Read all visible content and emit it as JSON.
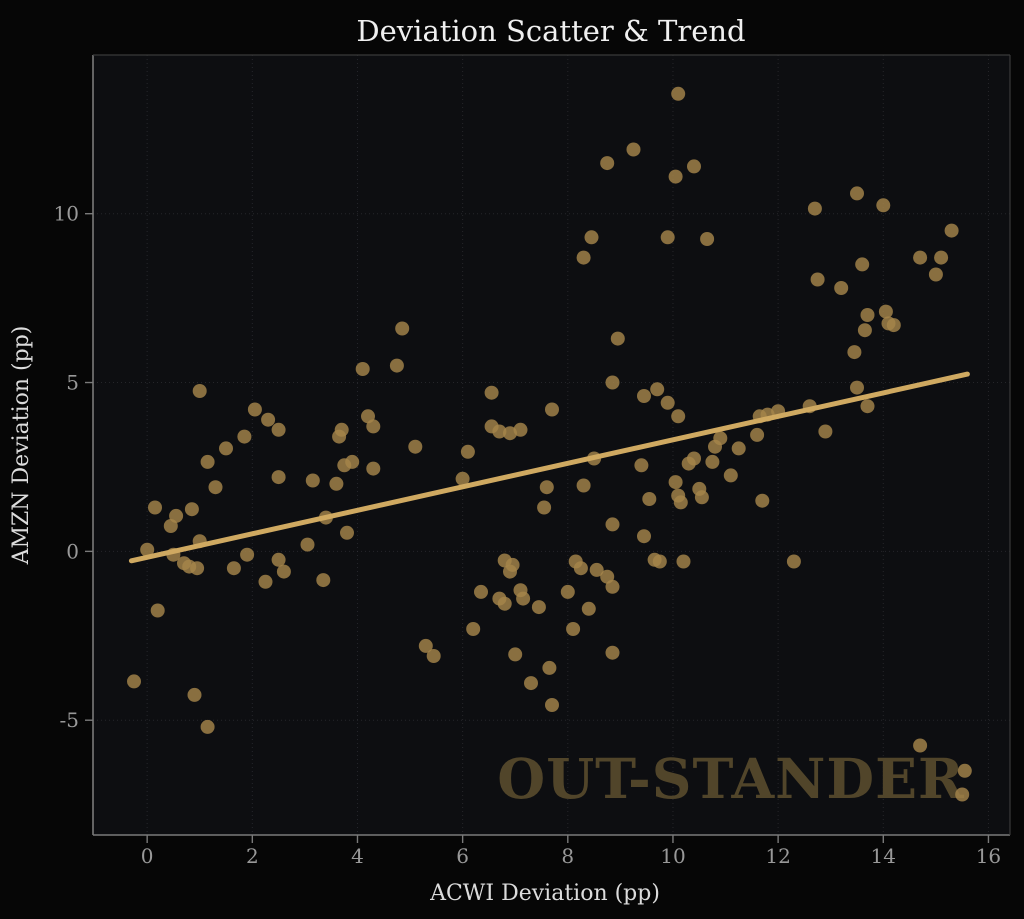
{
  "title": "Deviation Scatter & Trend",
  "watermark": "OUT-STANDER",
  "colors": {
    "background": "#060606",
    "plot_background": "#0d0e11",
    "point": "#a5854a",
    "trend": "#cfa961",
    "title": "#f0f0f0",
    "axis_label": "#dcdcdc",
    "tick_label": "#999999",
    "spine_main": "#7a7a7a",
    "spine_far": "#3a3a3a",
    "grid": "#3a3a40",
    "watermark": "#51452a"
  },
  "chart_data": {
    "type": "scatter",
    "title": "Deviation Scatter & Trend",
    "xlabel": "ACWI Deviation (pp)",
    "ylabel": "AMZN Deviation (pp)",
    "xlim": [
      -1.03,
      16.41
    ],
    "ylim": [
      -8.4,
      14.7
    ],
    "xticks": [
      0,
      2,
      4,
      6,
      8,
      10,
      12,
      14,
      16
    ],
    "yticks": [
      -5,
      0,
      5,
      10
    ],
    "grid": true,
    "grid_style": "dotted",
    "legend_position": "none",
    "watermark": "OUT-STANDER",
    "series": [
      {
        "name": "scatter-points",
        "type": "scatter",
        "color": "#a5854a",
        "marker_radius": 7,
        "opacity": 0.82,
        "points": [
          [
            1.0,
            4.75
          ],
          [
            2.05,
            4.2
          ],
          [
            2.3,
            3.9
          ],
          [
            2.5,
            3.6
          ],
          [
            1.85,
            3.4
          ],
          [
            3.7,
            3.6
          ],
          [
            3.65,
            3.4
          ],
          [
            4.1,
            5.4
          ],
          [
            4.75,
            5.5
          ],
          [
            4.85,
            6.6
          ],
          [
            4.2,
            4.0
          ],
          [
            4.3,
            3.7
          ],
          [
            10.1,
            13.55
          ],
          [
            9.25,
            11.9
          ],
          [
            8.75,
            11.5
          ],
          [
            10.4,
            11.4
          ],
          [
            10.05,
            11.1
          ],
          [
            8.45,
            9.3
          ],
          [
            8.3,
            8.7
          ],
          [
            9.9,
            9.3
          ],
          [
            10.65,
            9.25
          ],
          [
            8.95,
            6.3
          ],
          [
            8.85,
            5.0
          ],
          [
            6.55,
            4.7
          ],
          [
            9.7,
            4.8
          ],
          [
            9.45,
            4.6
          ],
          [
            9.9,
            4.4
          ],
          [
            7.7,
            4.2
          ],
          [
            10.1,
            4.0
          ],
          [
            6.55,
            3.7
          ],
          [
            6.7,
            3.55
          ],
          [
            6.9,
            3.5
          ],
          [
            7.1,
            3.6
          ],
          [
            5.1,
            3.1
          ],
          [
            13.5,
            10.6
          ],
          [
            12.7,
            10.15
          ],
          [
            14.0,
            10.25
          ],
          [
            15.3,
            9.5
          ],
          [
            14.7,
            8.7
          ],
          [
            15.1,
            8.7
          ],
          [
            15.0,
            8.2
          ],
          [
            13.6,
            8.5
          ],
          [
            12.75,
            8.05
          ],
          [
            13.2,
            7.8
          ],
          [
            13.7,
            7.0
          ],
          [
            13.65,
            6.55
          ],
          [
            14.05,
            7.1
          ],
          [
            14.1,
            6.75
          ],
          [
            14.2,
            6.7
          ],
          [
            13.45,
            5.9
          ],
          [
            13.5,
            4.85
          ],
          [
            13.7,
            4.3
          ],
          [
            12.6,
            4.3
          ],
          [
            11.65,
            4.0
          ],
          [
            11.8,
            4.05
          ],
          [
            12.0,
            4.15
          ],
          [
            11.6,
            3.45
          ],
          [
            12.9,
            3.55
          ],
          [
            1.5,
            3.05
          ],
          [
            1.15,
            2.65
          ],
          [
            1.3,
            1.9
          ],
          [
            2.5,
            2.2
          ],
          [
            3.15,
            2.1
          ],
          [
            3.6,
            2.0
          ],
          [
            3.75,
            2.55
          ],
          [
            3.9,
            2.65
          ],
          [
            4.3,
            2.45
          ],
          [
            0.15,
            1.3
          ],
          [
            0.55,
            1.05
          ],
          [
            0.85,
            1.25
          ],
          [
            0.45,
            0.75
          ],
          [
            1.0,
            0.3
          ],
          [
            0.0,
            0.05
          ],
          [
            0.5,
            -0.1
          ],
          [
            0.7,
            -0.35
          ],
          [
            0.8,
            -0.45
          ],
          [
            0.95,
            -0.5
          ],
          [
            1.65,
            -0.5
          ],
          [
            1.9,
            -0.1
          ],
          [
            2.5,
            -0.25
          ],
          [
            2.6,
            -0.6
          ],
          [
            2.25,
            -0.9
          ],
          [
            3.05,
            0.2
          ],
          [
            3.35,
            -0.85
          ],
          [
            3.8,
            0.55
          ],
          [
            3.4,
            1.0
          ],
          [
            0.2,
            -1.75
          ],
          [
            -0.25,
            -3.85
          ],
          [
            0.9,
            -4.25
          ],
          [
            1.15,
            -5.2
          ],
          [
            6.1,
            2.95
          ],
          [
            8.5,
            2.75
          ],
          [
            9.4,
            2.55
          ],
          [
            6.0,
            2.15
          ],
          [
            7.6,
            1.9
          ],
          [
            8.3,
            1.95
          ],
          [
            7.55,
            1.3
          ],
          [
            8.85,
            0.8
          ],
          [
            9.55,
            1.55
          ],
          [
            9.45,
            0.45
          ],
          [
            9.65,
            -0.25
          ],
          [
            9.75,
            -0.3
          ],
          [
            10.2,
            -0.3
          ],
          [
            6.8,
            -0.27
          ],
          [
            6.95,
            -0.4
          ],
          [
            6.9,
            -0.6
          ],
          [
            8.15,
            -0.3
          ],
          [
            8.25,
            -0.5
          ],
          [
            8.55,
            -0.55
          ],
          [
            8.75,
            -0.75
          ],
          [
            8.85,
            -1.05
          ],
          [
            6.35,
            -1.2
          ],
          [
            6.7,
            -1.4
          ],
          [
            6.8,
            -1.55
          ],
          [
            7.1,
            -1.15
          ],
          [
            7.15,
            -1.4
          ],
          [
            7.45,
            -1.65
          ],
          [
            8.0,
            -1.2
          ],
          [
            8.4,
            -1.7
          ],
          [
            8.1,
            -2.3
          ],
          [
            6.2,
            -2.3
          ],
          [
            5.3,
            -2.8
          ],
          [
            5.45,
            -3.1
          ],
          [
            7.0,
            -3.05
          ],
          [
            8.85,
            -3.0
          ],
          [
            7.65,
            -3.45
          ],
          [
            7.3,
            -3.9
          ],
          [
            7.7,
            -4.55
          ],
          [
            10.9,
            3.35
          ],
          [
            10.8,
            3.1
          ],
          [
            11.25,
            3.05
          ],
          [
            10.4,
            2.75
          ],
          [
            10.3,
            2.6
          ],
          [
            10.75,
            2.65
          ],
          [
            11.1,
            2.25
          ],
          [
            10.05,
            2.05
          ],
          [
            10.5,
            1.85
          ],
          [
            10.55,
            1.6
          ],
          [
            10.1,
            1.65
          ],
          [
            10.15,
            1.45
          ],
          [
            11.7,
            1.5
          ],
          [
            12.3,
            -0.3
          ],
          [
            14.7,
            -5.75
          ],
          [
            15.55,
            -6.5
          ],
          [
            15.5,
            -7.2
          ]
        ]
      },
      {
        "name": "trend-line",
        "type": "line",
        "color": "#cfa961",
        "line_width": 5,
        "points": [
          [
            -0.3,
            -0.28
          ],
          [
            15.6,
            5.25
          ]
        ]
      }
    ]
  }
}
